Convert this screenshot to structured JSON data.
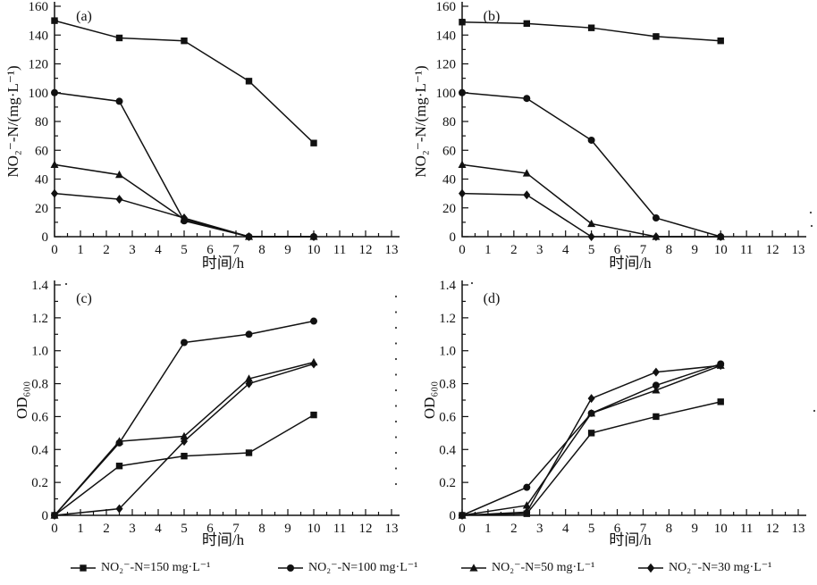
{
  "figure": {
    "background": "#ffffff",
    "ink": "#111111",
    "legend": [
      {
        "marker": "square",
        "label": "NO₂⁻-N=150 mg·L⁻¹"
      },
      {
        "marker": "circle",
        "label": "NO₂⁻-N=100 mg·L⁻¹"
      },
      {
        "marker": "triangle",
        "label": "NO₂⁻-N=50 mg·L⁻¹"
      },
      {
        "marker": "diamond",
        "label": "NO₂⁻-N=30 mg·L⁻¹"
      }
    ]
  },
  "chart_data": [
    {
      "id": "a",
      "type": "line",
      "panel_label": "(a)",
      "xlabel": "时间/h",
      "ylabel": "NO₂⁻-N/(mg·L⁻¹)",
      "xlim": [
        0,
        13
      ],
      "ylim": [
        0,
        160
      ],
      "xticks": [
        0,
        1,
        2,
        3,
        4,
        5,
        6,
        7,
        8,
        9,
        10,
        11,
        12,
        13
      ],
      "xminor_step": 0.5,
      "ytick_labels": [
        "0",
        "20",
        "40",
        "60",
        "80",
        "100",
        "120",
        "140",
        "160"
      ],
      "grid": false,
      "x": [
        0,
        2.5,
        5,
        7.5,
        10
      ],
      "series": [
        {
          "name": "NO₂⁻-N=150 mg·L⁻¹",
          "marker": "square",
          "values": [
            150,
            138,
            136,
            108,
            65
          ]
        },
        {
          "name": "NO₂⁻-N=100 mg·L⁻¹",
          "marker": "circle",
          "values": [
            100,
            94,
            11,
            0,
            0
          ]
        },
        {
          "name": "NO₂⁻-N=50 mg·L⁻¹",
          "marker": "triangle",
          "values": [
            50,
            43,
            12,
            0,
            0
          ]
        },
        {
          "name": "NO₂⁻-N=30 mg·L⁻¹",
          "marker": "diamond",
          "values": [
            30,
            26,
            13,
            0,
            0
          ]
        }
      ]
    },
    {
      "id": "b",
      "type": "line",
      "panel_label": "(b)",
      "xlabel": "时间/h",
      "ylabel": "NO₂⁻-N/(mg·L⁻¹)",
      "xlim": [
        0,
        13
      ],
      "ylim": [
        0,
        160
      ],
      "xticks": [
        0,
        1,
        2,
        3,
        4,
        5,
        6,
        7,
        8,
        9,
        10,
        11,
        12,
        13
      ],
      "xminor_step": 0.5,
      "ytick_labels": [
        "0",
        "20",
        "40",
        "60",
        "80",
        "100",
        "120",
        "140",
        "160"
      ],
      "grid": false,
      "x": [
        0,
        2.5,
        5,
        7.5,
        10
      ],
      "series": [
        {
          "name": "NO₂⁻-N=150 mg·L⁻¹",
          "marker": "square",
          "values": [
            149,
            148,
            145,
            139,
            136
          ]
        },
        {
          "name": "NO₂⁻-N=100 mg·L⁻¹",
          "marker": "circle",
          "values": [
            100,
            96,
            67,
            13,
            0
          ]
        },
        {
          "name": "NO₂⁻-N=50 mg·L⁻¹",
          "marker": "triangle",
          "values": [
            50,
            44,
            9,
            0,
            0
          ]
        },
        {
          "name": "NO₂⁻-N=30 mg·L⁻¹",
          "marker": "diamond",
          "values": [
            30,
            29,
            0,
            0,
            0
          ]
        }
      ]
    },
    {
      "id": "c",
      "type": "line",
      "panel_label": "(c)",
      "xlabel": "时间/h",
      "ylabel": "OD₆₀₀",
      "xlim": [
        0,
        13
      ],
      "ylim": [
        0,
        1.4
      ],
      "xticks": [
        0,
        1,
        2,
        3,
        4,
        5,
        6,
        7,
        8,
        9,
        10,
        11,
        12,
        13
      ],
      "xminor_step": 0.5,
      "ytick_labels": [
        "0",
        "0.2",
        "0.4",
        "0.6",
        "0.8",
        "1.0",
        "1.2",
        "1.4"
      ],
      "grid": false,
      "x": [
        0,
        2.5,
        5,
        7.5,
        10
      ],
      "series": [
        {
          "name": "NO₂⁻-N=150 mg·L⁻¹",
          "marker": "square",
          "values": [
            0,
            0.3,
            0.36,
            0.38,
            0.61
          ]
        },
        {
          "name": "NO₂⁻-N=100 mg·L⁻¹",
          "marker": "circle",
          "values": [
            0,
            0.44,
            1.05,
            1.1,
            1.18
          ]
        },
        {
          "name": "NO₂⁻-N=50 mg·L⁻¹",
          "marker": "triangle",
          "values": [
            0,
            0.45,
            0.48,
            0.83,
            0.93
          ]
        },
        {
          "name": "NO₂⁻-N=30 mg·L⁻¹",
          "marker": "diamond",
          "values": [
            0,
            0.04,
            0.45,
            0.8,
            0.92
          ]
        }
      ]
    },
    {
      "id": "d",
      "type": "line",
      "panel_label": "(d)",
      "xlabel": "时间/h",
      "ylabel": "OD₆₀₀",
      "xlim": [
        0,
        13
      ],
      "ylim": [
        0,
        1.4
      ],
      "xticks": [
        0,
        1,
        2,
        3,
        4,
        5,
        6,
        7,
        8,
        9,
        10,
        11,
        12,
        13
      ],
      "xminor_step": 0.5,
      "ytick_labels": [
        "0",
        "0.2",
        "0.4",
        "0.6",
        "0.8",
        "1.0",
        "1.2",
        "1.4"
      ],
      "grid": false,
      "x": [
        0,
        2.5,
        5,
        7.5,
        10
      ],
      "series": [
        {
          "name": "NO₂⁻-N=150 mg·L⁻¹",
          "marker": "square",
          "values": [
            0,
            0.01,
            0.5,
            0.6,
            0.69
          ]
        },
        {
          "name": "NO₂⁻-N=100 mg·L⁻¹",
          "marker": "circle",
          "values": [
            0,
            0.17,
            0.62,
            0.79,
            0.92
          ]
        },
        {
          "name": "NO₂⁻-N=50 mg·L⁻¹",
          "marker": "triangle",
          "values": [
            0,
            0.06,
            0.62,
            0.76,
            0.91
          ]
        },
        {
          "name": "NO₂⁻-N=30 mg·L⁻¹",
          "marker": "diamond",
          "values": [
            0,
            0.02,
            0.71,
            0.87,
            0.91
          ]
        }
      ]
    }
  ]
}
